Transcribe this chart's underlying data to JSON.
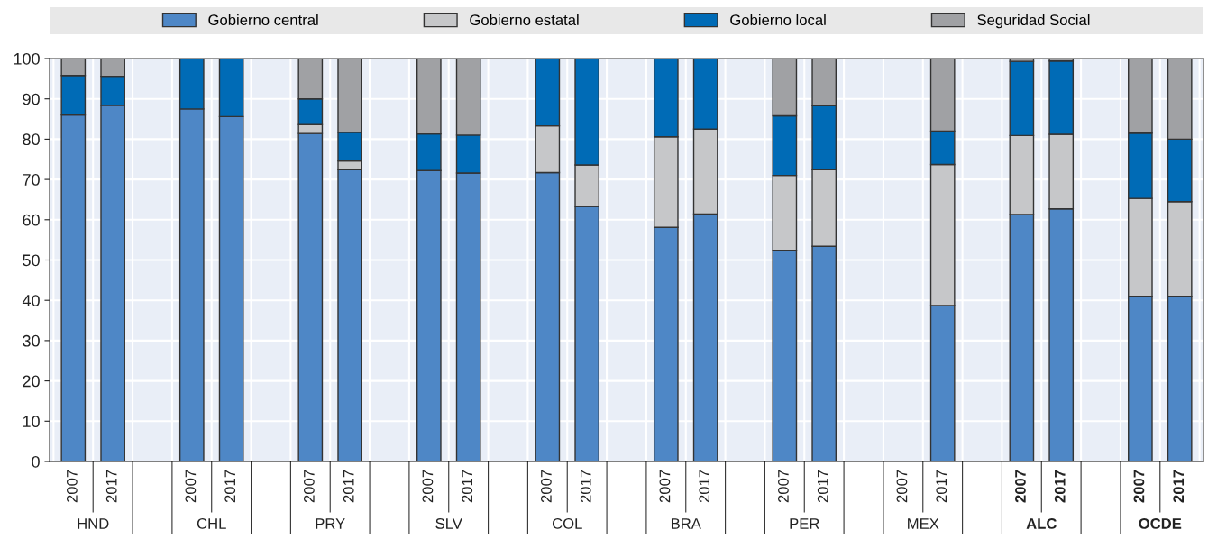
{
  "chart_data": {
    "type": "bar",
    "stacked": true,
    "categories": [
      "2007",
      "2017",
      null,
      "2007",
      "2017",
      null,
      "2007",
      "2017",
      null,
      "2007",
      "2017",
      null,
      "2007",
      "2017",
      null,
      "2007",
      "2017",
      null,
      "2007",
      "2017",
      null,
      "2007",
      "2017",
      null,
      "2007",
      "2017",
      null,
      "2007",
      "2017"
    ],
    "series": [
      {
        "name": "Gobierno central",
        "color": "#4e87c6",
        "values": [
          86,
          88.4,
          null,
          87.5,
          85.6,
          null,
          81.4,
          72.4,
          null,
          72.2,
          71.6,
          null,
          71.7,
          63.3,
          null,
          58.1,
          61.4,
          null,
          52.4,
          53.4,
          null,
          null,
          38.7,
          null,
          61.3,
          62.7,
          null,
          41,
          41
        ]
      },
      {
        "name": "Gobierno estatal",
        "color": "#c6c7c9",
        "values": [
          null,
          null,
          null,
          null,
          null,
          null,
          2.2,
          2.2,
          null,
          null,
          null,
          null,
          11.6,
          10.3,
          null,
          22.5,
          21.1,
          null,
          18.6,
          19,
          null,
          null,
          35,
          null,
          19.6,
          18.5,
          null,
          24.3,
          23.5
        ]
      },
      {
        "name": "Gobierno local",
        "color": "#006bb6",
        "values": [
          9.8,
          7.2,
          null,
          12.5,
          14.4,
          null,
          6.4,
          7.1,
          null,
          9.1,
          9.4,
          null,
          16.7,
          26.4,
          null,
          19.4,
          17.5,
          null,
          14.8,
          15.9,
          null,
          null,
          8.3,
          null,
          18.4,
          18.2,
          null,
          16.2,
          15.5
        ]
      },
      {
        "name": "Seguridad Social",
        "color": "#a0a1a4",
        "values": [
          4.2,
          4.4,
          null,
          null,
          null,
          null,
          10,
          18.3,
          null,
          18.7,
          19,
          null,
          null,
          null,
          null,
          null,
          null,
          null,
          14.2,
          11.7,
          null,
          null,
          18,
          null,
          0.7,
          0.6,
          null,
          18.5,
          20
        ]
      }
    ],
    "annotations": [
      "HND",
      "CHL",
      "PRY",
      "SLV",
      "COL",
      "BRA",
      "PER",
      "MEX",
      "ALC",
      "OCDE"
    ],
    "ylim": [
      0,
      100
    ],
    "yticks": [
      0,
      10,
      20,
      30,
      40,
      50,
      60,
      70,
      80,
      90,
      100
    ],
    "grid": true,
    "legend": "top"
  }
}
